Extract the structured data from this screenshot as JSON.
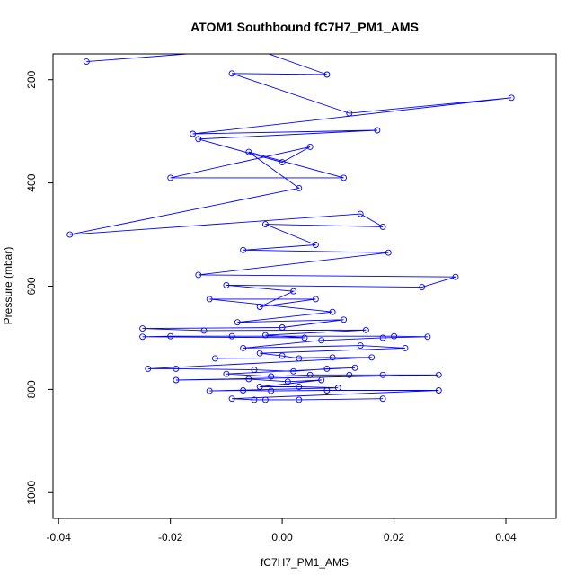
{
  "chart_data": {
    "type": "line",
    "title": "ATOM1 Southbound fC7H7_PM1_AMS",
    "xlabel": "fC7H7_PM1_AMS",
    "ylabel": "Pressure (mbar)",
    "xlim": [
      -0.041,
      0.049
    ],
    "ylim": [
      1050,
      150
    ],
    "y_reversed": true,
    "x_ticks": [
      -0.04,
      -0.02,
      0.0,
      0.02,
      0.04
    ],
    "x_tick_labels": [
      "-0.04",
      "-0.02",
      "0.00",
      "0.02",
      "0.04"
    ],
    "y_ticks": [
      200,
      400,
      600,
      800,
      1000
    ],
    "y_tick_labels": [
      "200",
      "400",
      "600",
      "800",
      "1000"
    ],
    "grid": false,
    "colors": {
      "series": "#0000ff",
      "axes": "#000000",
      "background": "#ffffff"
    },
    "series": [
      {
        "marker": "open-circle",
        "points": [
          [
            -0.035,
            165
          ],
          [
            -0.005,
            140
          ],
          [
            0.008,
            190
          ],
          [
            -0.009,
            188
          ],
          [
            0.012,
            265
          ],
          [
            0.041,
            235
          ],
          [
            -0.016,
            305
          ],
          [
            0.017,
            298
          ],
          [
            -0.015,
            315
          ],
          [
            0.0,
            360
          ],
          [
            0.005,
            330
          ],
          [
            -0.02,
            390
          ],
          [
            0.011,
            390
          ],
          [
            -0.006,
            340
          ],
          [
            0.003,
            410
          ],
          [
            -0.038,
            500
          ],
          [
            0.014,
            460
          ],
          [
            0.018,
            485
          ],
          [
            -0.003,
            480
          ],
          [
            0.006,
            520
          ],
          [
            -0.007,
            530
          ],
          [
            0.019,
            535
          ],
          [
            -0.015,
            578
          ],
          [
            0.031,
            582
          ],
          [
            0.025,
            602
          ],
          [
            -0.01,
            598
          ],
          [
            0.002,
            610
          ],
          [
            -0.004,
            640
          ],
          [
            0.006,
            625
          ],
          [
            -0.013,
            625
          ],
          [
            0.009,
            650
          ],
          [
            -0.008,
            670
          ],
          [
            0.011,
            665
          ],
          [
            0.0,
            680
          ],
          [
            -0.025,
            682
          ],
          [
            -0.014,
            686
          ],
          [
            0.015,
            685
          ],
          [
            -0.003,
            695
          ],
          [
            0.004,
            700
          ],
          [
            -0.025,
            698
          ],
          [
            -0.02,
            697
          ],
          [
            -0.009,
            697
          ],
          [
            0.02,
            697
          ],
          [
            0.026,
            698
          ],
          [
            0.018,
            700
          ],
          [
            0.007,
            705
          ],
          [
            -0.007,
            720
          ],
          [
            0.014,
            715
          ],
          [
            0.022,
            720
          ],
          [
            -0.004,
            730
          ],
          [
            0.0,
            735
          ],
          [
            0.003,
            740
          ],
          [
            0.009,
            738
          ],
          [
            -0.012,
            740
          ],
          [
            0.016,
            738
          ],
          [
            -0.024,
            760
          ],
          [
            -0.019,
            760
          ],
          [
            -0.005,
            762
          ],
          [
            0.002,
            765
          ],
          [
            0.008,
            760
          ],
          [
            0.013,
            758
          ],
          [
            -0.01,
            770
          ],
          [
            -0.002,
            775
          ],
          [
            0.005,
            772
          ],
          [
            0.012,
            772
          ],
          [
            0.018,
            772
          ],
          [
            0.028,
            772
          ],
          [
            -0.019,
            782
          ],
          [
            -0.006,
            780
          ],
          [
            0.001,
            785
          ],
          [
            0.007,
            782
          ],
          [
            -0.004,
            795
          ],
          [
            0.003,
            795
          ],
          [
            0.01,
            797
          ],
          [
            -0.013,
            803
          ],
          [
            -0.007,
            802
          ],
          [
            -0.002,
            803
          ],
          [
            0.008,
            802
          ],
          [
            0.028,
            802
          ],
          [
            -0.009,
            818
          ],
          [
            -0.005,
            820
          ],
          [
            -0.003,
            820
          ],
          [
            0.003,
            820
          ],
          [
            0.018,
            818
          ]
        ]
      }
    ]
  }
}
